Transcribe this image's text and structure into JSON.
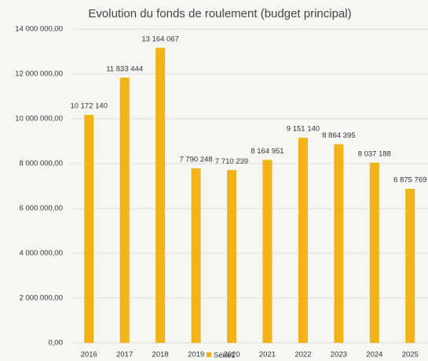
{
  "chart_data": {
    "type": "bar",
    "title": "Evolution du fonds de roulement (budget principal)",
    "categories": [
      "2016",
      "2017",
      "2018",
      "2019",
      "2020",
      "2021",
      "2022",
      "2023",
      "2024",
      "2025"
    ],
    "series": [
      {
        "name": "Série1",
        "color": "#f2b318",
        "values": [
          10172140,
          11833444,
          13164067,
          7790248,
          7710239,
          8164951,
          9151140,
          8864395,
          8037188,
          6875769
        ],
        "value_labels": [
          "10 172 140",
          "11 833 444",
          "13 164 067",
          "7 790 248",
          "7 710 239",
          "8 164 951",
          "9 151 140",
          "8 864 395",
          "8 037 188",
          "6 875 769"
        ]
      }
    ],
    "ylim": [
      0,
      14000000
    ],
    "yticks": [
      {
        "value": 0,
        "label": "0,00"
      },
      {
        "value": 2000000,
        "label": "2 000 000,00"
      },
      {
        "value": 4000000,
        "label": "4 000 000,00"
      },
      {
        "value": 6000000,
        "label": "6 000 000,00"
      },
      {
        "value": 8000000,
        "label": "8 000 000,00"
      },
      {
        "value": 10000000,
        "label": "10 000 000,00"
      },
      {
        "value": 12000000,
        "label": "12 000 000,00"
      },
      {
        "value": 14000000,
        "label": "14 000 000,00"
      }
    ],
    "grid": true,
    "legend": "bottom"
  }
}
